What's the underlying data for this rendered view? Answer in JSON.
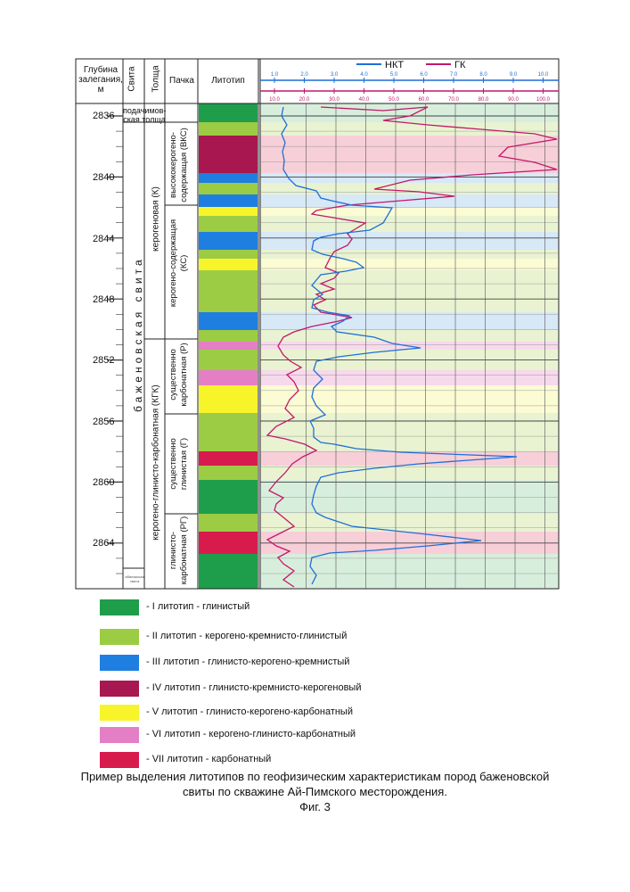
{
  "header": {
    "depth": [
      "Глубина",
      "залегания,",
      "м"
    ],
    "svita": "Свита",
    "tolsha": "Толща",
    "pachka": "Пачка",
    "litotip": "Литотип"
  },
  "log_legend": {
    "nkt": "НКТ",
    "gk": "ГК",
    "nkt_color": "#1f6fd6",
    "gk_color": "#c2186b",
    "nkt_ticks": [
      "1.0",
      "2.0",
      "3.0",
      "4.0",
      "5.0",
      "6.0",
      "7.0",
      "8.0",
      "9.0",
      "10.0"
    ],
    "gk_ticks": [
      "10.0",
      "20.0",
      "30.0",
      "40.0",
      "50.0",
      "60.0",
      "70.0",
      "80.0",
      "90.0",
      "100.0"
    ]
  },
  "depth_ticks": [
    "2836",
    "2840",
    "2844",
    "2848",
    "2852",
    "2856",
    "2860",
    "2864"
  ],
  "svita_labels": {
    "top": "подачимов-ская толща",
    "main": "баженовская свита",
    "bottom": "абалакская свита"
  },
  "tolsha_labels": {
    "upper": "керогеновая (К)",
    "lower": "керогено-глинисто-карбонатная (КГК)"
  },
  "pachka_labels": {
    "vks": "высококерогено-содержащая (ВКС)",
    "ks": "керогено-содержащая (КС)",
    "p": "существенно карбонатная (Р)",
    "g": "существенно глинистая (Г)",
    "rg": "глинисто-карбонатная (РГ)"
  },
  "lithotype_colors": {
    "I": "#1e9e4a",
    "II": "#9ccc43",
    "III": "#1e7fe0",
    "IV": "#a8174f",
    "V": "#f7f42a",
    "VI": "#e47fc6",
    "VII": "#d81b4d"
  },
  "legend": [
    {
      "color": "#1e9e4a",
      "label": "- I литотип - глинистый"
    },
    {
      "color": "#9ccc43",
      "label": "- II литотип - керогено-кремнисто-глинистый"
    },
    {
      "color": "#1e7fe0",
      "label": "- III литотип - глинисто-керогено-кремнистый"
    },
    {
      "color": "#a8174f",
      "label": "- IV литотип - глинисто-кремнисто-керогеновый"
    },
    {
      "color": "#f7f42a",
      "label": "- V литотип - глинисто-керогено-карбонатный"
    },
    {
      "color": "#e47fc6",
      "label": "- VI литотип - керогено-глинисто-карбонатный"
    },
    {
      "color": "#d81b4d",
      "label": "- VII литотип - карбонатный"
    }
  ],
  "caption": {
    "line1": "Пример выделения литотипов  по геофизическим характеристикам пород баженовской",
    "line2": "свиты  по скважине Ай-Пимского месторождения.",
    "line3": "Фиг. 3"
  }
}
